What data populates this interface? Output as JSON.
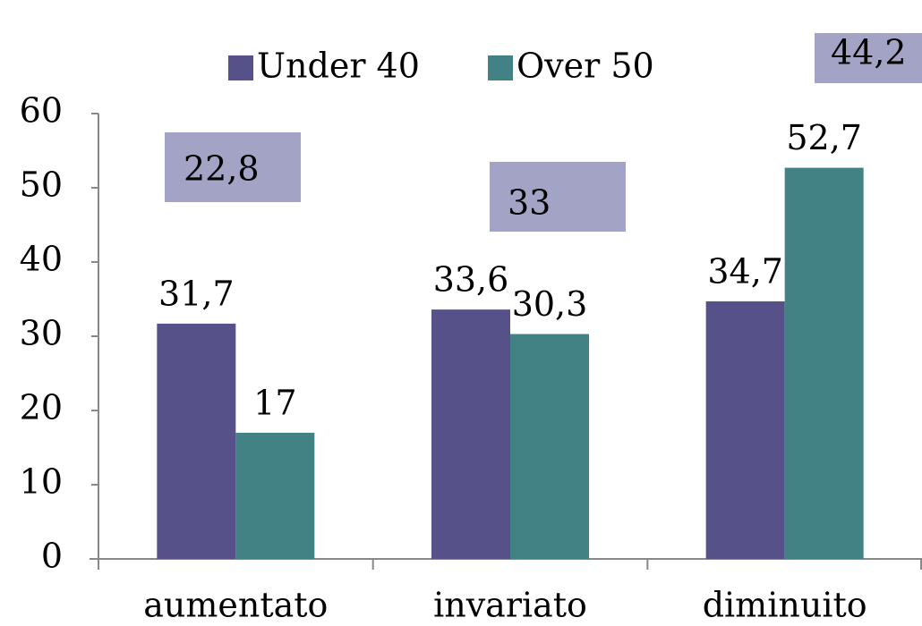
{
  "chart_data": {
    "type": "bar",
    "categories": [
      "aumentato",
      "invariato",
      "diminuito"
    ],
    "series": [
      {
        "name": "Under 40",
        "color": "#565289",
        "values": [
          31.7,
          33.6,
          34.7
        ],
        "value_labels": [
          "31,7",
          "33,6",
          "34,7"
        ]
      },
      {
        "name": "Over 50",
        "color": "#428284",
        "values": [
          17,
          30.3,
          52.7
        ],
        "value_labels": [
          "17",
          "30,3",
          "52,7"
        ]
      }
    ],
    "annotations": [
      "22,8",
      "33",
      "44,2"
    ],
    "annotation_color": "#a3a3c6",
    "ylim": [
      0,
      60
    ],
    "yticks": [
      0,
      10,
      20,
      30,
      40,
      50,
      60
    ],
    "grid": false,
    "legend": "top"
  }
}
